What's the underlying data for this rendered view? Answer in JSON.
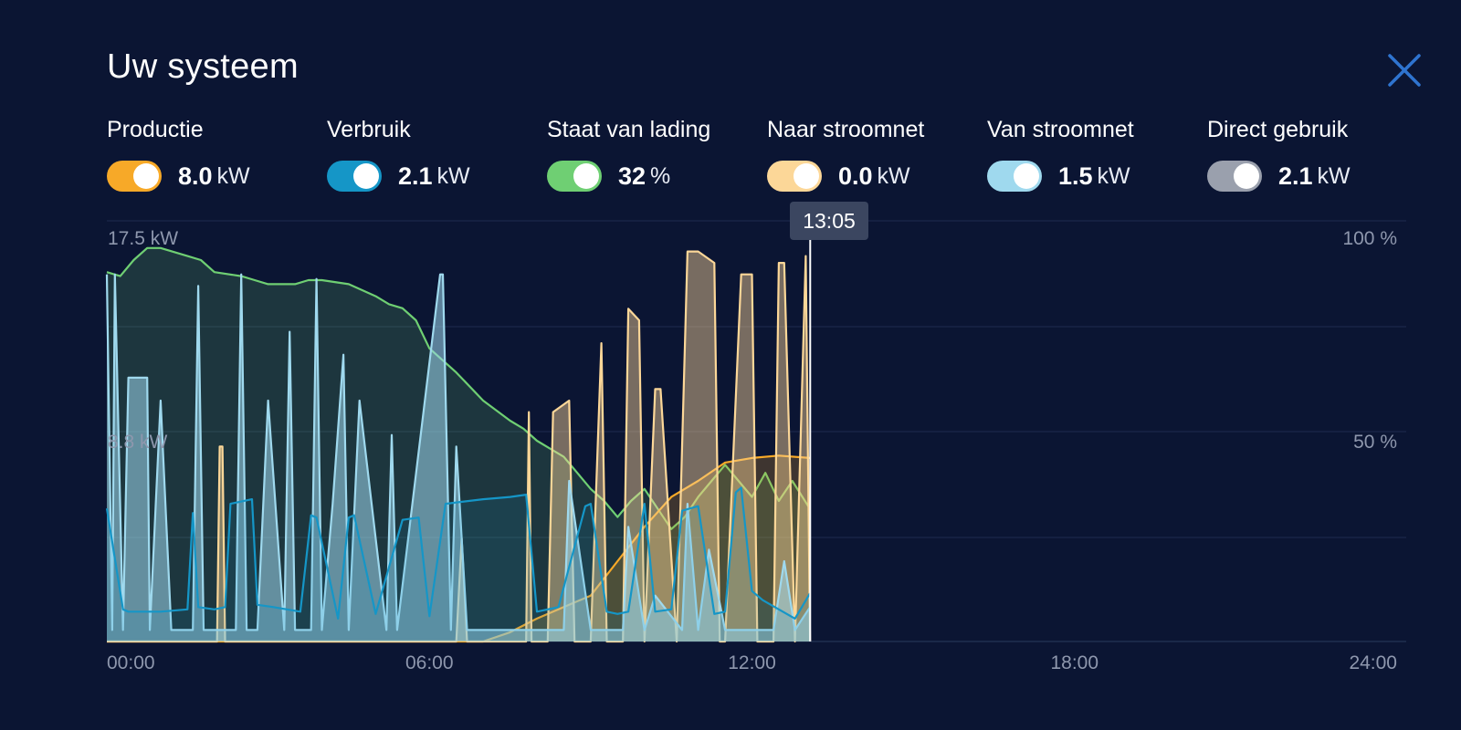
{
  "header": {
    "title": "Uw systeem"
  },
  "legend": [
    {
      "label": "Productie",
      "value": "8.0",
      "unit": "kW",
      "color": "#f7a928"
    },
    {
      "label": "Verbruik",
      "value": "2.1",
      "unit": "kW",
      "color": "#1596c7"
    },
    {
      "label": "Staat van lading",
      "value": "32",
      "unit": "%",
      "color": "#6fcf73"
    },
    {
      "label": "Naar stroomnet",
      "value": "0.0",
      "unit": "kW",
      "color": "#fcd798"
    },
    {
      "label": "Van stroomnet",
      "value": "1.5",
      "unit": "kW",
      "color": "#9fd9ee"
    },
    {
      "label": "Direct gebruik",
      "value": "2.1",
      "unit": "kW",
      "color": "#9aa0ad"
    }
  ],
  "chart_data": {
    "type": "area",
    "x_unit": "hours",
    "xlim": [
      0,
      24
    ],
    "x_ticks": [
      "00:00",
      "06:00",
      "12:00",
      "18:00",
      "24:00"
    ],
    "y_left_labels": [
      "17.5 kW",
      "8.8 kW"
    ],
    "y_right_labels": [
      "100 %",
      "50 %"
    ],
    "cursor_time": "13:05",
    "series": [
      {
        "name": "Staat van lading",
        "axis": "right",
        "unit": "%",
        "x": [
          0,
          0.25,
          0.5,
          0.75,
          1.0,
          1.5,
          1.75,
          2.0,
          2.5,
          2.75,
          3.0,
          3.5,
          3.75,
          4.0,
          4.5,
          5.0,
          5.25,
          5.5,
          5.75,
          6.0,
          6.5,
          7.0,
          7.5,
          7.75,
          8.0,
          8.25,
          8.5,
          8.75,
          9.0,
          9.25,
          9.5,
          9.75,
          10.0,
          10.25,
          10.5,
          10.75,
          11.0,
          11.25,
          11.5,
          11.75,
          12.0,
          12.25,
          12.5,
          12.75,
          13.08
        ],
        "values": [
          92,
          91,
          95,
          98,
          98,
          96,
          95,
          92,
          91,
          90,
          89,
          89,
          90,
          90,
          89,
          86,
          84,
          83,
          80,
          73,
          67,
          60,
          55,
          53,
          50,
          48,
          46,
          42,
          38,
          35,
          31,
          35,
          38,
          33,
          28,
          31,
          36,
          40,
          44,
          40,
          36,
          42,
          35,
          40,
          33
        ]
      },
      {
        "name": "Productie",
        "axis": "left",
        "unit": "kW",
        "x": [
          0,
          7.0,
          7.5,
          8.0,
          8.5,
          9.0,
          9.5,
          10.0,
          10.5,
          11.0,
          11.5,
          12.0,
          12.5,
          13.08
        ],
        "values": [
          0,
          0,
          0.4,
          1.0,
          1.5,
          2.0,
          3.5,
          5.0,
          6.3,
          7.0,
          7.8,
          8.0,
          8.1,
          8.0
        ]
      },
      {
        "name": "Verbruik",
        "axis": "left",
        "unit": "kW",
        "x": [
          0,
          0.3,
          0.4,
          1.0,
          1.5,
          1.6,
          1.7,
          2.0,
          2.2,
          2.3,
          2.7,
          2.8,
          3.1,
          3.6,
          3.8,
          3.9,
          4.3,
          4.5,
          4.6,
          5.0,
          5.5,
          5.8,
          6.0,
          6.3,
          7.0,
          7.5,
          7.8,
          8.0,
          8.4,
          8.9,
          9.0,
          9.3,
          9.5,
          9.7,
          10.0,
          10.2,
          10.5,
          10.7,
          11.0,
          11.3,
          11.5,
          11.7,
          11.8,
          12.0,
          12.2,
          12.5,
          12.8,
          13.08
        ],
        "values": [
          5.8,
          1.4,
          1.3,
          1.3,
          1.4,
          5.6,
          1.5,
          1.4,
          1.5,
          6.0,
          6.2,
          1.6,
          1.5,
          1.3,
          5.5,
          5.4,
          1.0,
          5.4,
          5.5,
          1.2,
          5.3,
          5.4,
          1.1,
          6.0,
          6.2,
          6.3,
          6.4,
          1.3,
          1.5,
          5.9,
          6.0,
          1.3,
          1.2,
          1.3,
          6.0,
          1.3,
          1.4,
          5.7,
          5.9,
          1.2,
          1.3,
          6.5,
          6.7,
          2.2,
          1.8,
          1.4,
          1.0,
          2.1
        ]
      },
      {
        "name": "Van stroomnet",
        "axis": "left",
        "unit": "kW",
        "x": [
          0,
          0.1,
          0.15,
          0.3,
          0.4,
          0.5,
          0.75,
          0.8,
          1.0,
          1.2,
          1.6,
          1.7,
          1.8,
          2.4,
          2.5,
          2.6,
          2.8,
          3.0,
          3.3,
          3.4,
          3.5,
          3.8,
          3.9,
          4.0,
          4.2,
          4.4,
          4.5,
          4.7,
          5.2,
          5.3,
          5.4,
          6.2,
          6.25,
          6.4,
          6.5,
          6.7,
          8.0,
          8.5,
          8.6,
          9.0,
          9.6,
          9.7,
          10.0,
          10.2,
          10.7,
          10.8,
          11.0,
          11.2,
          11.5,
          12.0,
          12.4,
          12.6,
          12.8,
          13.08
        ],
        "values": [
          16.0,
          0.5,
          16.0,
          0.5,
          11.5,
          11.5,
          11.5,
          0.5,
          10.5,
          0.5,
          0.5,
          15.5,
          0.5,
          0.5,
          16.0,
          0.5,
          0.5,
          10.5,
          0.5,
          13.5,
          0.5,
          0.5,
          15.8,
          0.5,
          6.0,
          12.5,
          0.5,
          10.5,
          0.5,
          9.0,
          0.5,
          16.0,
          16.0,
          0.5,
          8.5,
          0.5,
          0.5,
          0.5,
          7.0,
          0.5,
          0.5,
          5.0,
          0.5,
          2.0,
          0.5,
          6.0,
          0.5,
          4.0,
          0.5,
          0.5,
          0.5,
          3.5,
          0.5,
          1.5
        ]
      },
      {
        "name": "Naar stroomnet",
        "axis": "left",
        "unit": "kW",
        "x": [
          0,
          2.05,
          2.1,
          2.15,
          2.2,
          6.0,
          6.5,
          6.6,
          6.7,
          7.8,
          7.85,
          7.9,
          8.2,
          8.3,
          8.6,
          8.7,
          9.0,
          9.2,
          9.3,
          9.6,
          9.7,
          9.9,
          10.0,
          10.2,
          10.3,
          10.6,
          10.8,
          11.0,
          11.3,
          11.4,
          11.5,
          11.8,
          12.0,
          12.1,
          12.4,
          12.5,
          12.6,
          12.8,
          13.0,
          13.08
        ],
        "values": [
          0,
          0,
          8.5,
          8.5,
          0,
          0,
          0,
          4.5,
          0,
          0,
          10.0,
          0,
          0,
          10.0,
          10.5,
          0,
          0,
          13.0,
          0,
          0,
          14.5,
          14.0,
          0,
          11.0,
          11.0,
          0,
          17.0,
          17.0,
          16.5,
          0,
          0,
          16.0,
          16.0,
          0,
          0,
          16.5,
          16.5,
          0,
          16.8,
          0
        ]
      }
    ]
  }
}
